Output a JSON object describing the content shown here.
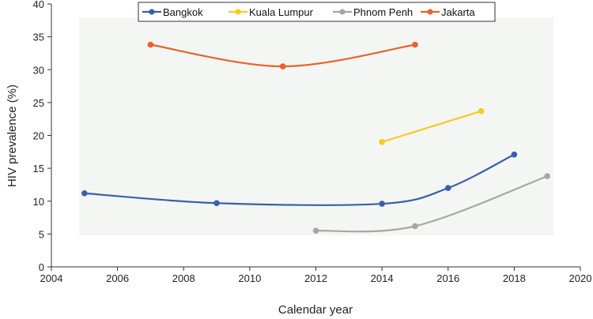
{
  "chart_data": {
    "type": "line",
    "title": "",
    "xlabel": "Calendar year",
    "ylabel": "HIV prevalence (%)",
    "xlim": [
      2004,
      2020
    ],
    "ylim": [
      0,
      40
    ],
    "x_ticks": [
      2004,
      2006,
      2008,
      2010,
      2012,
      2014,
      2016,
      2018,
      2020
    ],
    "y_ticks": [
      0,
      5,
      10,
      15,
      20,
      25,
      30,
      35,
      40
    ],
    "grid": false,
    "legend_position": "top",
    "series": [
      {
        "name": "Bangkok",
        "color": "#3A5FAA",
        "points": [
          [
            2005,
            11.2
          ],
          [
            2009,
            9.7
          ],
          [
            2014,
            9.6
          ],
          [
            2016,
            12.0
          ],
          [
            2018,
            17.1
          ]
        ]
      },
      {
        "name": "Kuala Lumpur",
        "color": "#F5CC1F",
        "points": [
          [
            2014,
            19.0
          ],
          [
            2017,
            23.7
          ]
        ]
      },
      {
        "name": "Phnom Penh",
        "color": "#A6A6A6",
        "points": [
          [
            2012,
            5.5
          ],
          [
            2015,
            6.2
          ],
          [
            2019,
            13.8
          ]
        ]
      },
      {
        "name": "Jakarta",
        "color": "#E8632A",
        "points": [
          [
            2007,
            33.8
          ],
          [
            2011,
            30.5
          ],
          [
            2015,
            33.8
          ]
        ]
      }
    ]
  }
}
